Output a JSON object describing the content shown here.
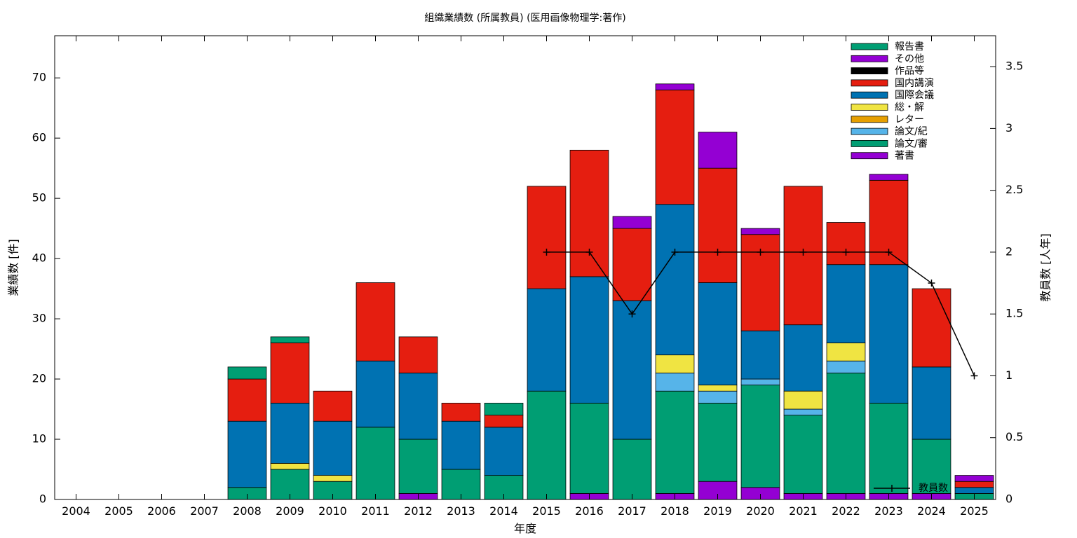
{
  "chart_data": {
    "type": "bar",
    "stacked": true,
    "title": "組織業績数 (所属教員) (医用画像物理学:著作)",
    "xlabel": "年度",
    "ylabel": "業績数 [件]",
    "y2label": "教員数 [人年]",
    "ylim": [
      0,
      77
    ],
    "y2lim": [
      0,
      3.75
    ],
    "yticks": [
      0,
      10,
      20,
      30,
      40,
      50,
      60,
      70
    ],
    "y2ticks": [
      "0",
      "0.5",
      "1",
      "1.5",
      "2",
      "2.5",
      "3",
      "3.5"
    ],
    "grid": false,
    "legend_position": "top-right",
    "categories": [
      "2004",
      "2005",
      "2006",
      "2007",
      "2008",
      "2009",
      "2010",
      "2011",
      "2012",
      "2013",
      "2014",
      "2015",
      "2016",
      "2017",
      "2018",
      "2019",
      "2020",
      "2021",
      "2022",
      "2023",
      "2024",
      "2025"
    ],
    "series": [
      {
        "name": "著書",
        "color": "#9400D3",
        "values": [
          0,
          0,
          0,
          0,
          0,
          0,
          0,
          0,
          1,
          0,
          0,
          0,
          1,
          0,
          1,
          3,
          2,
          1,
          1,
          1,
          1,
          0
        ]
      },
      {
        "name": "論文/審",
        "color": "#009E73",
        "values": [
          0,
          0,
          0,
          0,
          2,
          5,
          3,
          12,
          9,
          5,
          4,
          18,
          15,
          10,
          17,
          13,
          17,
          13,
          20,
          15,
          9,
          1
        ]
      },
      {
        "name": "論文/紀",
        "color": "#56B4E9",
        "values": [
          0,
          0,
          0,
          0,
          0,
          0,
          0,
          0,
          0,
          0,
          0,
          0,
          0,
          0,
          3,
          2,
          1,
          1,
          2,
          0,
          0,
          0
        ]
      },
      {
        "name": "レター",
        "color": "#E69F00",
        "values": [
          0,
          0,
          0,
          0,
          0,
          0,
          0,
          0,
          0,
          0,
          0,
          0,
          0,
          0,
          0,
          0,
          0,
          0,
          0,
          0,
          0,
          0
        ]
      },
      {
        "name": "総・解",
        "color": "#F0E442",
        "values": [
          0,
          0,
          0,
          0,
          0,
          1,
          1,
          0,
          0,
          0,
          0,
          0,
          0,
          0,
          3,
          1,
          0,
          3,
          3,
          0,
          0,
          0
        ]
      },
      {
        "name": "国際会議",
        "color": "#0072B2",
        "values": [
          0,
          0,
          0,
          0,
          11,
          10,
          9,
          11,
          11,
          8,
          8,
          17,
          21,
          23,
          25,
          17,
          8,
          11,
          13,
          23,
          12,
          1
        ]
      },
      {
        "name": "国内講演",
        "color": "#E51E10",
        "values": [
          0,
          0,
          0,
          0,
          7,
          10,
          5,
          13,
          6,
          3,
          2,
          17,
          21,
          12,
          19,
          19,
          16,
          23,
          7,
          14,
          13,
          1
        ]
      },
      {
        "name": "作品等",
        "color": "#000000",
        "values": [
          0,
          0,
          0,
          0,
          0,
          0,
          0,
          0,
          0,
          0,
          0,
          0,
          0,
          0,
          0,
          0,
          0,
          0,
          0,
          0,
          0,
          0
        ]
      },
      {
        "name": "その他",
        "color": "#9400D3",
        "values": [
          0,
          0,
          0,
          0,
          0,
          0,
          0,
          0,
          0,
          0,
          0,
          0,
          0,
          2,
          1,
          6,
          1,
          0,
          0,
          1,
          0,
          1
        ]
      },
      {
        "name": "報告書",
        "color": "#009E73",
        "values": [
          0,
          0,
          0,
          0,
          2,
          1,
          0,
          0,
          0,
          0,
          2,
          0,
          0,
          0,
          0,
          0,
          0,
          0,
          0,
          0,
          0,
          0
        ]
      }
    ],
    "line_series": {
      "name": "教員数",
      "color": "#000000",
      "axis": "y2",
      "x": [
        "2015",
        "2016",
        "2017",
        "2018",
        "2019",
        "2020",
        "2021",
        "2022",
        "2023",
        "2024",
        "2025"
      ],
      "values": [
        2,
        2,
        1.5,
        2,
        2,
        2,
        2,
        2,
        2,
        1.75,
        1
      ]
    }
  }
}
